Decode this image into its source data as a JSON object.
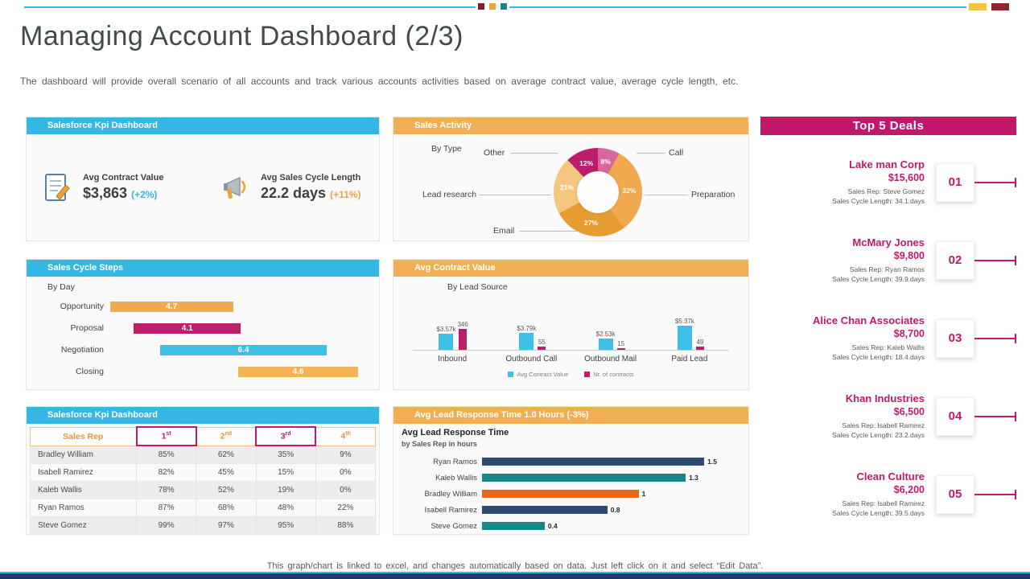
{
  "page": {
    "title": "Managing Account Dashboard (2/3)",
    "subtitle": "The dashboard will provide overall scenario of all accounts and track various accounts activities based on average contract value, average cycle length, etc.",
    "footer": "This graph/chart is linked to excel, and changes automatically based on data. Just left click on it and select “Edit Data”."
  },
  "colors": {
    "cyan": "#35b7e5",
    "orange": "#f2ae52",
    "magenta": "#c0196c",
    "navy": "#1f3864"
  },
  "panels": {
    "kpi_summary_title": "Salesforce Kpi Dashboard",
    "sales_cycle_title": "Sales Cycle Steps",
    "kpi_table_title": "Salesforce Kpi Dashboard",
    "sales_activity_title": "Sales Activity",
    "avg_contract_title": "Avg Contract Value",
    "lead_response_title": "Avg Lead Response Time 1.0 Hours (-3%)",
    "top_deals_title": "Top 5 Deals"
  },
  "kpi_summary": {
    "items": [
      {
        "icon": "contract-document-icon",
        "label": "Avg Contract Value",
        "value": "$3,863",
        "delta": "(+2%)"
      },
      {
        "icon": "megaphone-icon",
        "label": "Avg Sales Cycle Length",
        "value": "22.2 days",
        "delta": "(+11%)"
      }
    ]
  },
  "kpi_table": {
    "columns": [
      "Sales Rep",
      "1",
      "2",
      "3",
      "4"
    ],
    "superscripts": [
      "",
      "st",
      "nd",
      "rd",
      "th"
    ],
    "rows": [
      {
        "name": "Bradley William",
        "values": [
          "85%",
          "62%",
          "35%",
          "9%"
        ]
      },
      {
        "name": "Isabell Ramirez",
        "values": [
          "82%",
          "45%",
          "15%",
          "0%"
        ]
      },
      {
        "name": "Kaleb Wallis",
        "values": [
          "78%",
          "52%",
          "19%",
          "0%"
        ]
      },
      {
        "name": "Ryan Ramos",
        "values": [
          "87%",
          "68%",
          "48%",
          "22%"
        ]
      },
      {
        "name": "Steve Gomez",
        "values": [
          "99%",
          "97%",
          "95%",
          "88%"
        ]
      }
    ]
  },
  "top_deals": {
    "items": [
      {
        "rank": "01",
        "company": "Lake man Corp",
        "value": "$15,600",
        "sales_rep": "Sales Rep: Steve Gomez",
        "cycle": "Sales Cycle Length: 34.1.days"
      },
      {
        "rank": "02",
        "company": "McMary Jones",
        "value": "$9,800",
        "sales_rep": "Sales Rep: Ryan Ramos",
        "cycle": "Sales Cycle Length: 39.9.days"
      },
      {
        "rank": "03",
        "company": "Alice Chan Associates",
        "value": "$8,700",
        "sales_rep": "Sales Rep: Kaleb Wallis",
        "cycle": "Sales Cycle Length: 18.4.days"
      },
      {
        "rank": "04",
        "company": "Khan Industries",
        "value": "$6,500",
        "sales_rep": "Sales Rep: Isabell Ramirez",
        "cycle": "Sales Cycle Length: 23.2.days"
      },
      {
        "rank": "05",
        "company": "Clean Culture",
        "value": "$6,200",
        "sales_rep": "Sales Rep: Isabell Ramirez",
        "cycle": "Sales Cycle Length: 39.5.days"
      }
    ]
  },
  "chart_data": [
    {
      "id": "sales_activity",
      "type": "pie",
      "donut": true,
      "title": "Sales Activity",
      "subtitle": "By Type",
      "labels": [
        "Call",
        "Preparation",
        "Email",
        "Lead research",
        "Other"
      ],
      "values": [
        8,
        32,
        27,
        21,
        12
      ],
      "colors": [
        "#d9679f",
        "#f0a94f",
        "#e79c33",
        "#f4c67e",
        "#bd1e6c"
      ],
      "legend_position": "callout-labels"
    },
    {
      "id": "avg_contract_value",
      "type": "bar",
      "title": "Avg Contract Value",
      "subtitle": "By Lead Source",
      "categories": [
        "Inbound",
        "Outbound Call",
        "Outbound Mail",
        "Paid Lead"
      ],
      "series": [
        {
          "name": "Avg Contract Value",
          "color": "#3dbfe9",
          "values": [
            3570,
            3790,
            2530,
            5370
          ],
          "labels": [
            "$3.57k",
            "$3.79k",
            "$2.53k",
            "$5.37k"
          ]
        },
        {
          "name": "Nr. of contracts",
          "color": "#bd1e6c",
          "values": [
            346,
            55,
            15,
            49
          ],
          "labels": [
            "346",
            "55",
            "15",
            "49"
          ]
        }
      ],
      "legend_position": "bottom"
    },
    {
      "id": "lead_response",
      "type": "bar",
      "orientation": "horizontal",
      "title": "Avg Lead Response Time",
      "subtitle": "by Sales Rep in hours",
      "categories": [
        "Ryan Ramos",
        "Kaleb Wallis",
        "Bradley William",
        "Isabell Ramirez",
        "Steve Gomez"
      ],
      "values": [
        1.5,
        1.3,
        1,
        0.8,
        0.4
      ],
      "colors": [
        "#2d4a73",
        "#17858c",
        "#e8671b",
        "#2d4a73",
        "#17858c"
      ],
      "xmax": 1.5
    },
    {
      "id": "sales_cycle_steps",
      "type": "bar",
      "orientation": "horizontal-waterfall",
      "title": "Sales Cycle Steps",
      "subtitle": "By Day",
      "categories": [
        "Opportunity",
        "Proposal",
        "Negotiation",
        "Closing"
      ],
      "values": [
        4.7,
        4.1,
        6.4,
        4.6
      ],
      "starts": [
        0,
        0.9,
        1.9,
        4.9
      ],
      "colors": [
        "#f0ab4e",
        "#bd1e6c",
        "#3dbfe9",
        "#f2b454"
      ],
      "xmax": 9.8
    }
  ]
}
